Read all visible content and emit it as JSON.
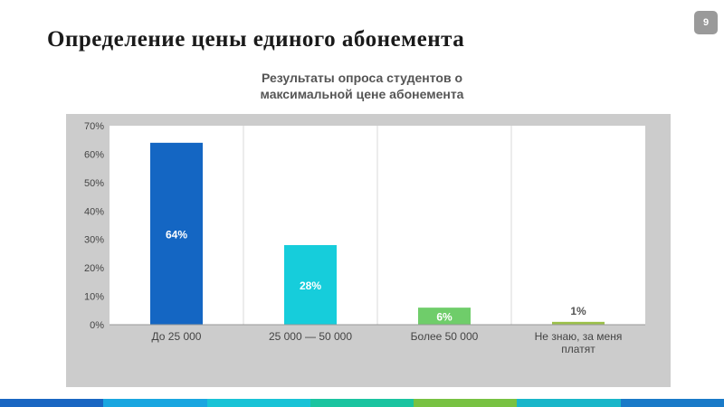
{
  "slide": {
    "title": "Определение цены единого абонемента",
    "page_number": "9"
  },
  "chart_data": {
    "type": "bar",
    "title": "Результаты опроса студентов о максимальной цене абонемента",
    "title_lines": [
      "Результаты опроса студентов о",
      "максимальной цене абонемента"
    ],
    "categories": [
      "До 25 000",
      "25 000 — 50 000",
      "Более 50 000",
      "Не знаю, за меня платят"
    ],
    "category_label_lines": [
      [
        "До 25 000"
      ],
      [
        "25 000 — 50 000"
      ],
      [
        "Более 50 000"
      ],
      [
        "Не знаю, за меня",
        "платят"
      ]
    ],
    "values": [
      64,
      28,
      6,
      1
    ],
    "data_labels": [
      "64%",
      "28%",
      "6%",
      "1%"
    ],
    "bar_colors": [
      "#1466c3",
      "#16cddb",
      "#6fcd6a",
      "#9cc14a"
    ],
    "ylim": [
      0,
      70
    ],
    "yticks": [
      0,
      10,
      20,
      30,
      40,
      50,
      60,
      70
    ],
    "ytick_labels": [
      "0%",
      "10%",
      "20%",
      "30%",
      "40%",
      "50%",
      "60%",
      "70%"
    ],
    "xlabel": "",
    "ylabel": "",
    "grid": "vertical"
  },
  "decor": {
    "stripe_colors": [
      "#1a66c2",
      "#1aa6e0",
      "#19c3d6",
      "#1bc4a0",
      "#78c242",
      "#19b6c9",
      "#1a7ac8"
    ]
  }
}
